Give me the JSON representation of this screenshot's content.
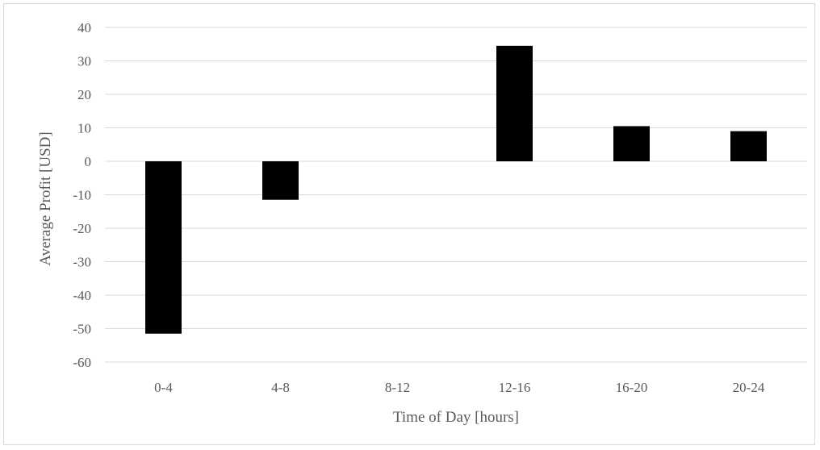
{
  "chart_data": {
    "type": "bar",
    "title": "",
    "xlabel": "Time  of Day [hours]",
    "ylabel": "Average Profit  [USD]",
    "categories": [
      "0-4",
      "4-8",
      "8-12",
      "12-16",
      "16-20",
      "20-24"
    ],
    "values": [
      -51.5,
      -11.5,
      0,
      34.5,
      10.5,
      9
    ],
    "ylim": [
      -60,
      40
    ],
    "yticks": [
      40,
      30,
      20,
      10,
      0,
      -10,
      -20,
      -30,
      -40,
      -50,
      -60
    ],
    "grid": true,
    "legend": "none",
    "bar_color": "#000000",
    "grid_color": "#d9d9d9",
    "text_color": "#595959"
  }
}
